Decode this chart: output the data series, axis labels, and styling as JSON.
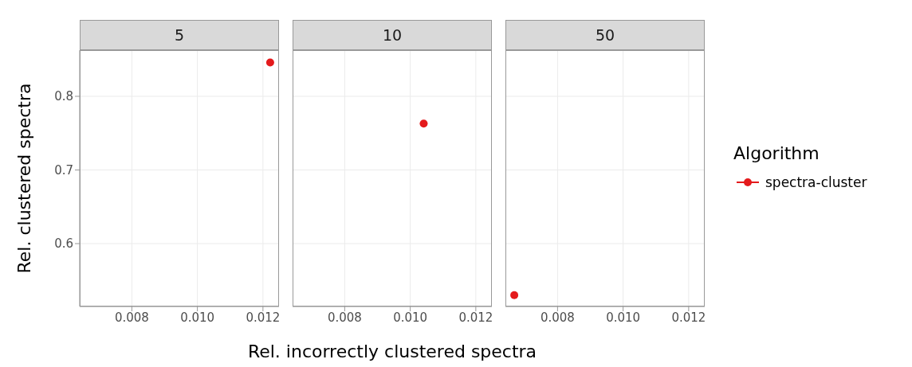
{
  "chart_data": [
    {
      "type": "scatter",
      "title": "5",
      "ylabel": "Rel. clustered spectra",
      "x": [
        0.01222
      ],
      "series": [
        {
          "color": "#e41a1c",
          "values": [
            0.846
          ]
        }
      ],
      "xlim": [
        0.00641,
        0.01249
      ],
      "ylim": [
        0.5146,
        0.8627
      ],
      "xticks": [
        {
          "value": 0.008,
          "label": "0.008"
        },
        {
          "value": 0.01,
          "label": "0.010"
        },
        {
          "value": 0.012,
          "label": "0.012"
        }
      ],
      "yticks": [
        0.6,
        0.7,
        0.8
      ],
      "grid": true,
      "marker": "circle",
      "legend": false
    },
    {
      "type": "scatter",
      "title": "10",
      "xlabel": "Rel. incorrectly clustered spectra",
      "x": [
        0.01041
      ],
      "series": [
        {
          "color": "#e41a1c",
          "values": [
            0.763
          ]
        }
      ],
      "xlim": [
        0.00641,
        0.01249
      ],
      "ylim": [
        0.5146,
        0.8627
      ],
      "xticks": [
        {
          "value": 0.008,
          "label": "0.008"
        },
        {
          "value": 0.01,
          "label": "0.010"
        },
        {
          "value": 0.012,
          "label": "0.012"
        }
      ],
      "yticks": [
        0.6,
        0.7,
        0.8
      ],
      "grid": true,
      "marker": "circle",
      "legend": false,
      "tick_labels": "x"
    },
    {
      "type": "scatter",
      "title": "50",
      "legend_title": "Algorithm",
      "x": [
        0.00668
      ],
      "series": [
        {
          "name": "spectra-cluster",
          "color": "#e41a1c",
          "values": [
            0.53
          ]
        }
      ],
      "xlim": [
        0.00641,
        0.01249
      ],
      "ylim": [
        0.5146,
        0.8627
      ],
      "xticks": [
        {
          "value": 0.008,
          "label": "0.008"
        },
        {
          "value": 0.01,
          "label": "0.010"
        },
        {
          "value": 0.012,
          "label": "0.012"
        }
      ],
      "yticks": [
        0.6,
        0.7,
        0.8
      ],
      "grid": true,
      "marker": "circle",
      "legend": "right",
      "tick_labels": "x"
    }
  ]
}
